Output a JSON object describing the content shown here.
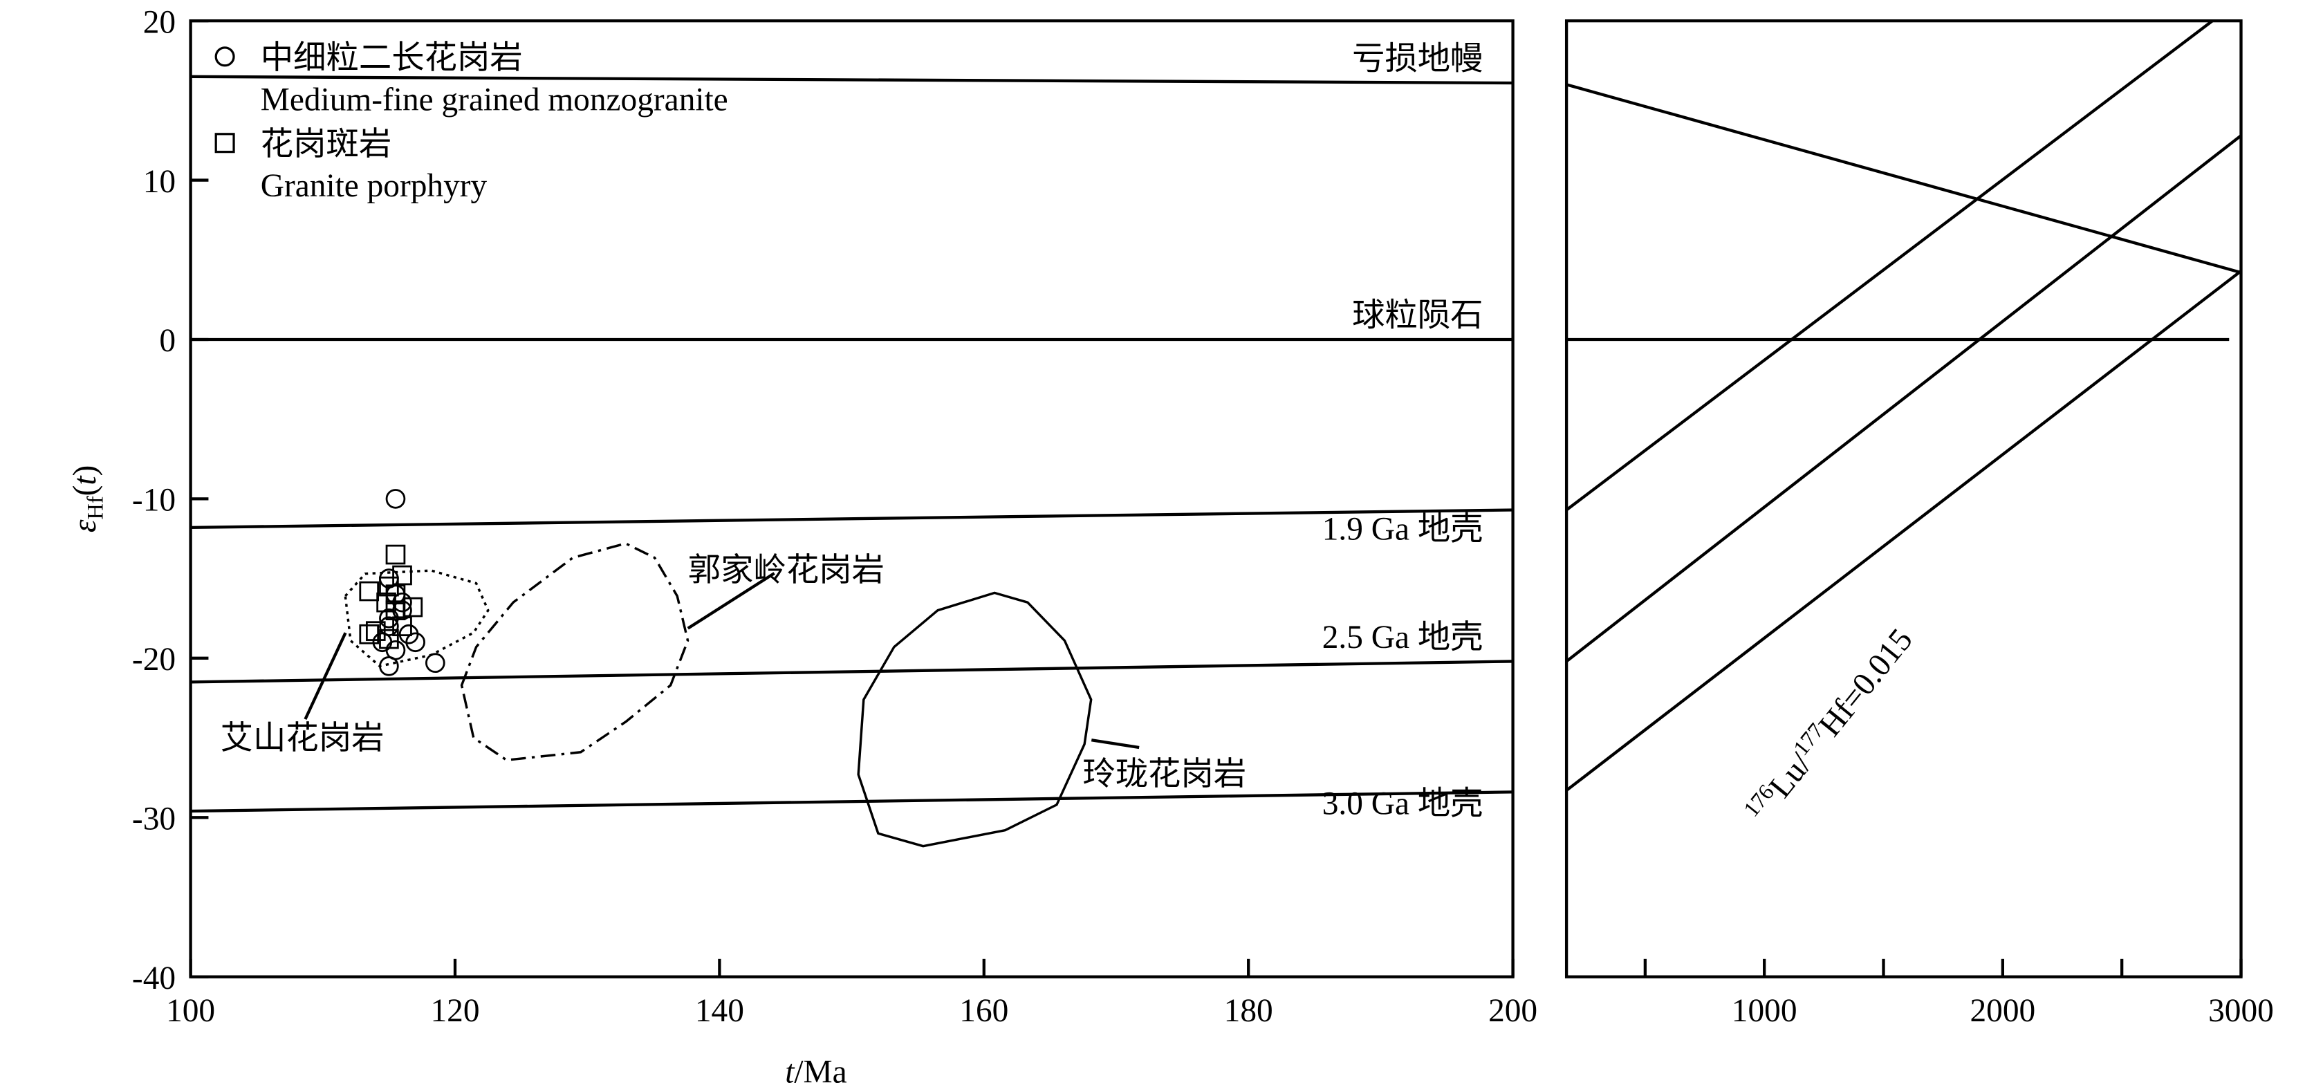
{
  "chart_data": [
    {
      "type": "scatter",
      "xlabel": [
        "t",
        "/Ma"
      ],
      "ylabel": [
        "ε",
        "Hf",
        "(",
        "t",
        ")"
      ],
      "xlim": [
        100,
        200
      ],
      "ylim": [
        -40,
        20
      ],
      "xticks": [
        100,
        120,
        140,
        160,
        180,
        200
      ],
      "yticks": [
        -40,
        -30,
        -20,
        -10,
        0,
        10,
        20
      ],
      "series": [
        {
          "name": "中细粒二长花岗岩",
          "name_en": "Medium-fine grained monzogranite",
          "marker": "circle",
          "color": "#000000",
          "x": [
            115.5,
            115,
            115.5,
            116,
            115,
            116.5,
            114.5,
            115.5,
            117,
            115,
            118.5,
            116,
            115
          ],
          "values": [
            -10,
            -15,
            -16,
            -17,
            -18,
            -18.5,
            -19,
            -19.5,
            -19,
            -20.5,
            -20.3,
            -16.5,
            -17.5
          ]
        },
        {
          "name": "花岗斑岩",
          "name_en": "Granite porphyry",
          "marker": "square",
          "color": "#000000",
          "x": [
            115.5,
            115,
            113.5,
            114.8,
            116,
            116.8,
            115.5,
            114,
            116,
            115,
            113.5,
            115.5
          ],
          "values": [
            -13.5,
            -15.5,
            -15.8,
            -16.5,
            -14.8,
            -16.8,
            -17,
            -18.3,
            -18,
            -18.8,
            -18.5,
            -16
          ]
        }
      ],
      "lines": [
        {
          "label": "亏损地幔",
          "x": [
            100,
            200
          ],
          "values": [
            16.5,
            16.1
          ]
        },
        {
          "label": "球粒陨石",
          "x": [
            100,
            200
          ],
          "values": [
            0,
            0
          ]
        },
        {
          "label": "1.9 Ga 地壳",
          "x": [
            100,
            200
          ],
          "values": [
            -11.8,
            -10.7
          ]
        },
        {
          "label": "2.5 Ga 地壳",
          "x": [
            100,
            200
          ],
          "values": [
            -21.5,
            -20.2
          ]
        },
        {
          "label": "3.0 Ga 地壳",
          "x": [
            100,
            200
          ],
          "values": [
            -29.6,
            -28.4
          ]
        }
      ],
      "regions": [
        {
          "label": "艾山花岗岩",
          "style": "dotted",
          "x": [
            111.7,
            113.2,
            118.2,
            121.6,
            122.5,
            121.4,
            118.2,
            114.3,
            112.1
          ],
          "values": [
            -16.1,
            -14.7,
            -14.5,
            -15.3,
            -17.0,
            -18.4,
            -19.8,
            -20.5,
            -18.9
          ]
        },
        {
          "label": "郭家岭花岗岩",
          "style": "dashdot",
          "x": [
            120.5,
            121.6,
            124.4,
            128.9,
            132.9,
            135.1,
            136.8,
            137.6,
            136.3,
            132.9,
            129.5,
            123.9,
            121.4
          ],
          "values": [
            -21.7,
            -19.3,
            -16.5,
            -13.7,
            -12.8,
            -13.7,
            -16.1,
            -18.9,
            -21.7,
            -24.0,
            -25.9,
            -26.4,
            -25.0
          ]
        },
        {
          "label": "玲珑花岗岩",
          "style": "solid",
          "x": [
            150.9,
            153.2,
            156.5,
            160.8,
            163.3,
            166.1,
            168.1,
            167.6,
            165.5,
            161.6,
            155.4,
            152.0,
            150.5
          ],
          "values": [
            -22.6,
            -19.3,
            -17.0,
            -15.9,
            -16.5,
            -18.9,
            -22.6,
            -25.4,
            -29.2,
            -30.8,
            -31.8,
            -31.0,
            -27.3
          ]
        }
      ]
    },
    {
      "type": "line",
      "xlim": [
        170,
        3000
      ],
      "ylim": [
        -40,
        20
      ],
      "xticks": [
        1000,
        2000,
        3000
      ],
      "xminor": [
        500,
        1500,
        2500
      ],
      "annotation": [
        "176",
        "Lu/",
        "177",
        "Hf=0.015"
      ],
      "lines": [
        {
          "x": [
            170,
            3000
          ],
          "values": [
            16,
            4.2
          ]
        },
        {
          "x": [
            170,
            2950
          ],
          "values": [
            0,
            0
          ]
        },
        {
          "x": [
            170,
            2880
          ],
          "values": [
            -10.7,
            20
          ]
        },
        {
          "x": [
            170,
            3000
          ],
          "values": [
            -20.2,
            12.8
          ]
        },
        {
          "x": [
            170,
            3000
          ],
          "values": [
            -28.3,
            4.3
          ]
        }
      ]
    }
  ]
}
